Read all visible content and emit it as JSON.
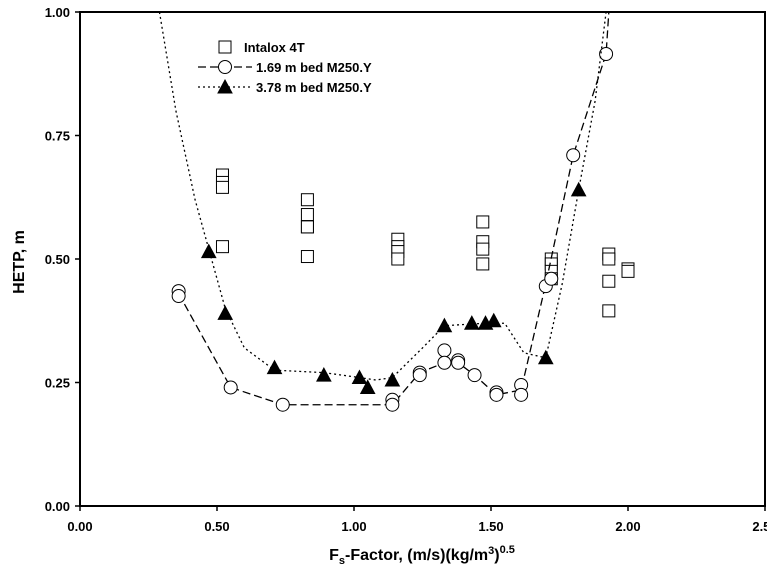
{
  "chart_data": {
    "type": "scatter",
    "x_label": [
      "F",
      "s",
      "-Factor, (m/s)(kg/m",
      "3",
      ")",
      "0.5"
    ],
    "y_label": "HETP,  m",
    "xlim": [
      0,
      2.5
    ],
    "xticks": [
      {
        "value": 0,
        "label": "0.00"
      },
      {
        "value": 0.5,
        "label": "0.50"
      },
      {
        "value": 1,
        "label": "1.00"
      },
      {
        "value": 1.5,
        "label": "1.50"
      },
      {
        "value": 2,
        "label": "2.00"
      },
      {
        "value": 2.5,
        "label": "2.50"
      }
    ],
    "ylim": [
      0,
      1
    ],
    "yticks": [
      {
        "value": 0,
        "label": "0.00"
      },
      {
        "value": 0.25,
        "label": "0.25"
      },
      {
        "value": 0.5,
        "label": "0.50"
      },
      {
        "value": 0.75,
        "label": "0.75"
      },
      {
        "value": 1,
        "label": "1.00"
      }
    ],
    "legend": "top-left",
    "series": [
      {
        "name": "Intalox 4T",
        "color": "#000000",
        "marker": "square",
        "fill": false,
        "x": [
          0.52,
          0.52,
          0.52,
          0.52,
          0.83,
          0.83,
          0.83,
          0.83,
          0.83,
          1.16,
          1.16,
          1.16,
          1.16,
          1.47,
          1.47,
          1.47,
          1.47,
          1.72,
          1.72,
          1.72,
          1.72,
          1.93,
          1.93,
          1.93,
          1.93,
          2.0,
          2.0
        ],
        "values": [
          0.67,
          0.655,
          0.645,
          0.525,
          0.62,
          0.59,
          0.565,
          0.565,
          0.505,
          0.54,
          0.525,
          0.515,
          0.5,
          0.575,
          0.535,
          0.52,
          0.49,
          0.5,
          0.49,
          0.475,
          0.46,
          0.51,
          0.5,
          0.455,
          0.395,
          0.48,
          0.475
        ]
      },
      {
        "name": "1.69 m bed M250.Y",
        "color": "#000000",
        "marker": "circle",
        "fill": false,
        "dash": "8,4",
        "x": [
          0.36,
          0.36,
          0.55,
          0.74,
          1.14,
          1.14,
          1.24,
          1.24,
          1.33,
          1.33,
          1.38,
          1.38,
          1.44,
          1.52,
          1.52,
          1.61,
          1.61,
          1.7,
          1.72,
          1.8,
          1.92
        ],
        "values": [
          0.435,
          0.425,
          0.24,
          0.205,
          0.215,
          0.205,
          0.27,
          0.265,
          0.315,
          0.29,
          0.295,
          0.29,
          0.265,
          0.23,
          0.225,
          0.245,
          0.225,
          0.445,
          0.46,
          0.71,
          0.915
        ],
        "curve": {
          "x": [
            0.36,
            0.55,
            0.74,
            1.14,
            1.24,
            1.33,
            1.38,
            1.44,
            1.52,
            1.61,
            1.7,
            1.8,
            1.92,
            1.93
          ],
          "y": [
            0.43,
            0.24,
            0.205,
            0.205,
            0.27,
            0.29,
            0.29,
            0.265,
            0.225,
            0.235,
            0.45,
            0.71,
            0.915,
            1.0
          ]
        }
      },
      {
        "name": "3.78 m bed M250.Y",
        "color": "#000000",
        "marker": "triangle",
        "fill": true,
        "dash": "2,3",
        "x": [
          0.47,
          0.53,
          0.71,
          0.89,
          1.02,
          1.05,
          1.14,
          1.33,
          1.43,
          1.48,
          1.51,
          1.7,
          1.82
        ],
        "values": [
          0.515,
          0.39,
          0.28,
          0.265,
          0.26,
          0.24,
          0.255,
          0.365,
          0.37,
          0.37,
          0.375,
          0.3,
          0.64
        ],
        "curve": {
          "x": [
            0.29,
            0.35,
            0.42,
            0.47,
            0.53,
            0.6,
            0.71,
            0.89,
            1.02,
            1.08,
            1.14,
            1.25,
            1.33,
            1.48,
            1.55,
            1.62,
            1.7,
            1.76,
            1.82,
            1.88,
            1.92
          ],
          "y": [
            1.0,
            0.8,
            0.62,
            0.52,
            0.4,
            0.32,
            0.275,
            0.27,
            0.26,
            0.255,
            0.26,
            0.32,
            0.365,
            0.37,
            0.37,
            0.31,
            0.3,
            0.45,
            0.64,
            0.82,
            1.0
          ]
        }
      }
    ]
  }
}
